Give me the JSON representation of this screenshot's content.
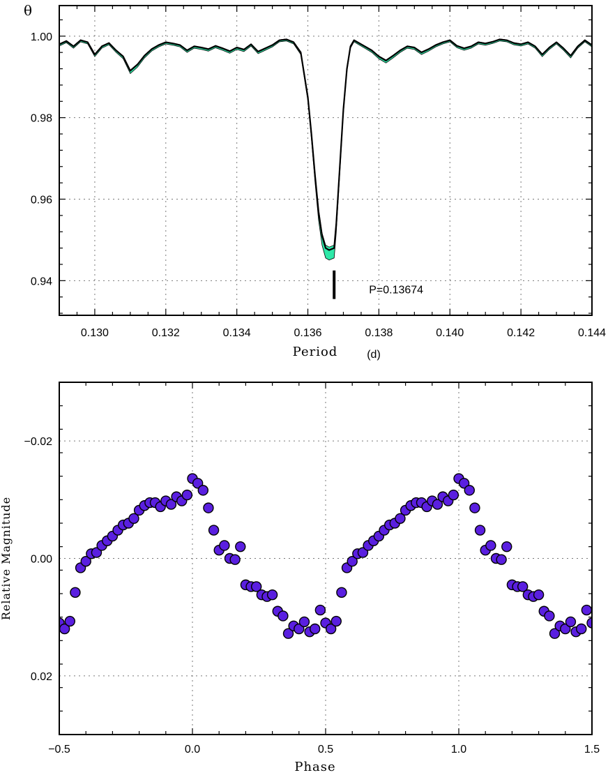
{
  "chart_data": [
    {
      "type": "line",
      "ylabel": "θ",
      "xlabel": "Period",
      "xlabel_unit": "(d)",
      "xlim": [
        0.129,
        0.144
      ],
      "ylim": [
        0.9315,
        1.0075
      ],
      "x_ticks": [
        0.13,
        0.132,
        0.134,
        0.136,
        0.138,
        0.14,
        0.142,
        0.144
      ],
      "x_tick_labels": [
        "0.130",
        "0.132",
        "0.134",
        "0.136",
        "0.138",
        "0.140",
        "0.142",
        "0.144"
      ],
      "y_ticks": [
        0.94,
        0.96,
        0.98,
        1.0
      ],
      "y_tick_labels": [
        "0.94",
        "0.96",
        "0.98",
        "1.00"
      ],
      "grid": true,
      "band_color": "#2ee8a8",
      "line_color": "#000000",
      "annotation": {
        "text": "P=0.13674",
        "period": 0.13674,
        "marker_y": [
          0.9355,
          0.9425
        ]
      },
      "series": [
        {
          "x": [
            0.129,
            0.1292,
            0.1294,
            0.1296,
            0.1298,
            0.13,
            0.1302,
            0.1304,
            0.1306,
            0.1308,
            0.131,
            0.1312,
            0.1314,
            0.1316,
            0.1318,
            0.132,
            0.1322,
            0.1324,
            0.1326,
            0.1328,
            0.133,
            0.1332,
            0.1334,
            0.1336,
            0.1338,
            0.134,
            0.1342,
            0.1344,
            0.1346,
            0.1348,
            0.135,
            0.1352,
            0.1354,
            0.1356,
            0.1358,
            0.136,
            0.1361,
            0.1362,
            0.1363,
            0.1364,
            0.1365,
            0.1366,
            0.13674,
            0.1368,
            0.1369,
            0.137,
            0.1371,
            0.1372,
            0.1373,
            0.1374,
            0.1376,
            0.1378,
            0.138,
            0.1382,
            0.1384,
            0.1386,
            0.1388,
            0.139,
            0.1392,
            0.1394,
            0.1396,
            0.1398,
            0.14,
            0.1402,
            0.1404,
            0.1406,
            0.1408,
            0.141,
            0.1412,
            0.1414,
            0.1416,
            0.1418,
            0.142,
            0.1422,
            0.1424,
            0.1426,
            0.1428,
            0.143,
            0.1432,
            0.1434,
            0.1436,
            0.1438,
            0.144
          ],
          "y": [
            0.998,
            0.9988,
            0.9975,
            0.999,
            0.9985,
            0.9955,
            0.9975,
            0.9983,
            0.9965,
            0.995,
            0.9915,
            0.993,
            0.9952,
            0.9968,
            0.9978,
            0.9985,
            0.9982,
            0.9978,
            0.9965,
            0.9975,
            0.9972,
            0.9968,
            0.9976,
            0.997,
            0.9963,
            0.9972,
            0.9967,
            0.998,
            0.9962,
            0.997,
            0.9978,
            0.999,
            0.9992,
            0.9985,
            0.996,
            0.985,
            0.976,
            0.966,
            0.957,
            0.951,
            0.948,
            0.9475,
            0.948,
            0.954,
            0.968,
            0.982,
            0.992,
            0.9975,
            0.999,
            0.9985,
            0.9975,
            0.9965,
            0.995,
            0.994,
            0.9952,
            0.9965,
            0.9975,
            0.9972,
            0.996,
            0.9968,
            0.9978,
            0.9985,
            0.999,
            0.9976,
            0.997,
            0.9975,
            0.9985,
            0.9982,
            0.9986,
            0.9992,
            0.999,
            0.9983,
            0.998,
            0.9985,
            0.9975,
            0.9955,
            0.9972,
            0.9985,
            0.997,
            0.9952,
            0.9975,
            0.999,
            0.9978
          ]
        }
      ]
    },
    {
      "type": "scatter",
      "xlabel": "Phase",
      "ylabel": "Relative Magnitude",
      "xlim": [
        -0.5,
        1.5
      ],
      "ylim": [
        0.03,
        -0.03
      ],
      "y_inverted": true,
      "x_ticks": [
        -0.5,
        0.0,
        0.5,
        1.0,
        1.5
      ],
      "x_tick_labels": [
        "−0.5",
        "0.0",
        "0.5",
        "1.0",
        "1.5"
      ],
      "y_ticks": [
        -0.02,
        0.0,
        0.02
      ],
      "y_tick_labels": [
        "−0.02",
        "0.00",
        "0.02"
      ],
      "grid": true,
      "marker_color": "#5a1fe0",
      "marker_edge": "#000000",
      "series": [
        {
          "x": [
            0.0,
            0.02,
            0.04,
            0.06,
            0.08,
            0.1,
            0.12,
            0.14,
            0.16,
            0.18,
            0.2,
            0.22,
            0.24,
            0.26,
            0.28,
            0.3,
            0.32,
            0.34,
            0.36,
            0.38,
            0.4,
            0.42,
            0.44,
            0.46,
            0.48,
            0.5,
            0.52,
            0.54,
            0.56,
            0.58,
            0.6,
            0.62,
            0.64,
            0.66,
            0.68,
            0.7,
            0.72,
            0.74,
            0.76,
            0.78,
            0.8,
            0.82,
            0.84,
            0.86,
            0.88,
            0.9,
            0.92,
            0.94,
            0.96,
            0.98
          ],
          "y": [
            -0.0136,
            -0.0128,
            -0.0116,
            -0.0086,
            -0.0048,
            -0.0014,
            -0.0022,
            0.0,
            0.0002,
            -0.002,
            0.0045,
            0.0048,
            0.0048,
            0.0062,
            0.0065,
            0.0062,
            0.009,
            0.0098,
            0.0128,
            0.0115,
            0.012,
            0.0108,
            0.0125,
            0.012,
            0.0088,
            0.011,
            0.012,
            0.0107,
            0.0058,
            0.0016,
            0.0005,
            -0.0008,
            -0.001,
            -0.0022,
            -0.003,
            -0.0038,
            -0.0048,
            -0.0057,
            -0.006,
            -0.0068,
            -0.0082,
            -0.009,
            -0.0095,
            -0.0095,
            -0.0088,
            -0.0098,
            -0.0092,
            -0.0105,
            -0.0098,
            -0.0108
          ]
        }
      ]
    }
  ]
}
